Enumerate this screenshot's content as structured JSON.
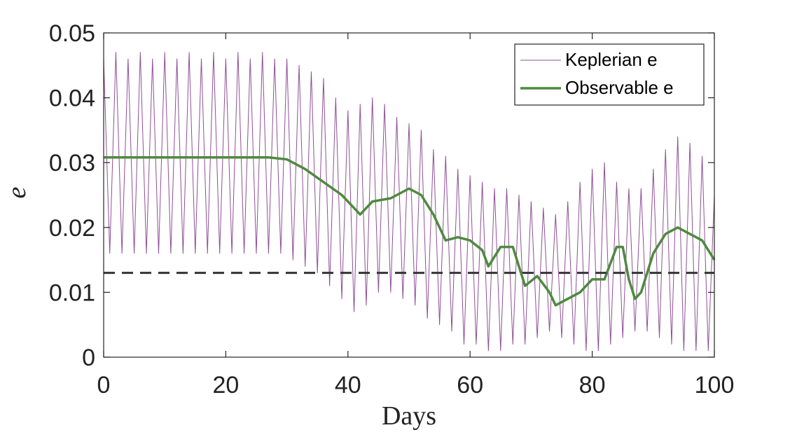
{
  "chart_data": {
    "type": "line",
    "xlabel": "Days",
    "ylabel": "e",
    "xlim": [
      0,
      100
    ],
    "ylim": [
      0,
      0.05
    ],
    "xticks": [
      0,
      20,
      40,
      60,
      80,
      100
    ],
    "yticks": [
      0,
      0.01,
      0.02,
      0.03,
      0.04,
      0.05
    ],
    "legend": "upper right",
    "hline": {
      "value": 0.013,
      "color": "#333333"
    },
    "series": [
      {
        "name": "Keplerian e",
        "color": "#8e4f96",
        "width": 1,
        "x": [
          0,
          1,
          2,
          3,
          4,
          5,
          6,
          7,
          8,
          9,
          10,
          11,
          12,
          13,
          14,
          15,
          16,
          17,
          18,
          19,
          20,
          21,
          22,
          23,
          24,
          25,
          26,
          27,
          28,
          29,
          30,
          31,
          32,
          33,
          34,
          35,
          36,
          37,
          38,
          39,
          40,
          41,
          42,
          43,
          44,
          45,
          46,
          47,
          48,
          49,
          50,
          51,
          52,
          53,
          54,
          55,
          56,
          57,
          58,
          59,
          60,
          61,
          62,
          63,
          64,
          65,
          66,
          67,
          68,
          69,
          70,
          71,
          72,
          73,
          74,
          75,
          76,
          77,
          78,
          79,
          80,
          81,
          82,
          83,
          84,
          85,
          86,
          87,
          88,
          89,
          90,
          91,
          92,
          93,
          94,
          95,
          96,
          97,
          98,
          99,
          100
        ],
        "values": [
          0.046,
          0.016,
          0.047,
          0.016,
          0.046,
          0.016,
          0.047,
          0.016,
          0.046,
          0.016,
          0.047,
          0.016,
          0.046,
          0.016,
          0.047,
          0.016,
          0.046,
          0.016,
          0.047,
          0.016,
          0.046,
          0.016,
          0.047,
          0.016,
          0.046,
          0.016,
          0.047,
          0.016,
          0.046,
          0.016,
          0.046,
          0.015,
          0.045,
          0.014,
          0.044,
          0.013,
          0.043,
          0.011,
          0.04,
          0.009,
          0.038,
          0.007,
          0.039,
          0.008,
          0.04,
          0.01,
          0.039,
          0.01,
          0.037,
          0.009,
          0.036,
          0.008,
          0.035,
          0.006,
          0.032,
          0.005,
          0.031,
          0.004,
          0.029,
          0.002,
          0.028,
          0.002,
          0.027,
          0.001,
          0.026,
          0.001,
          0.026,
          0.002,
          0.025,
          0.002,
          0.024,
          0.003,
          0.023,
          0.004,
          0.022,
          0.003,
          0.024,
          0.002,
          0.027,
          0.001,
          0.029,
          0.001,
          0.03,
          0.002,
          0.027,
          0.003,
          0.026,
          0.004,
          0.026,
          0.004,
          0.029,
          0.003,
          0.032,
          0.002,
          0.034,
          0.001,
          0.033,
          0.001,
          0.031,
          0.001,
          0.025
        ]
      },
      {
        "name": "Observable e",
        "color": "#4e8a3e",
        "width": 3.5,
        "x": [
          0,
          27,
          30,
          33,
          36,
          39,
          42,
          44,
          47,
          50,
          52,
          54,
          56,
          58,
          60,
          62,
          63,
          65,
          67,
          69,
          71,
          73,
          74,
          76,
          78,
          80,
          82,
          84,
          85,
          86,
          87,
          88,
          90,
          92,
          94,
          96,
          98,
          100
        ],
        "values": [
          0.0308,
          0.0308,
          0.0305,
          0.029,
          0.027,
          0.025,
          0.022,
          0.024,
          0.0245,
          0.026,
          0.025,
          0.022,
          0.018,
          0.0185,
          0.018,
          0.0165,
          0.014,
          0.017,
          0.017,
          0.011,
          0.0125,
          0.01,
          0.008,
          0.009,
          0.01,
          0.012,
          0.012,
          0.017,
          0.017,
          0.012,
          0.009,
          0.01,
          0.016,
          0.019,
          0.02,
          0.019,
          0.018,
          0.015
        ]
      }
    ]
  }
}
